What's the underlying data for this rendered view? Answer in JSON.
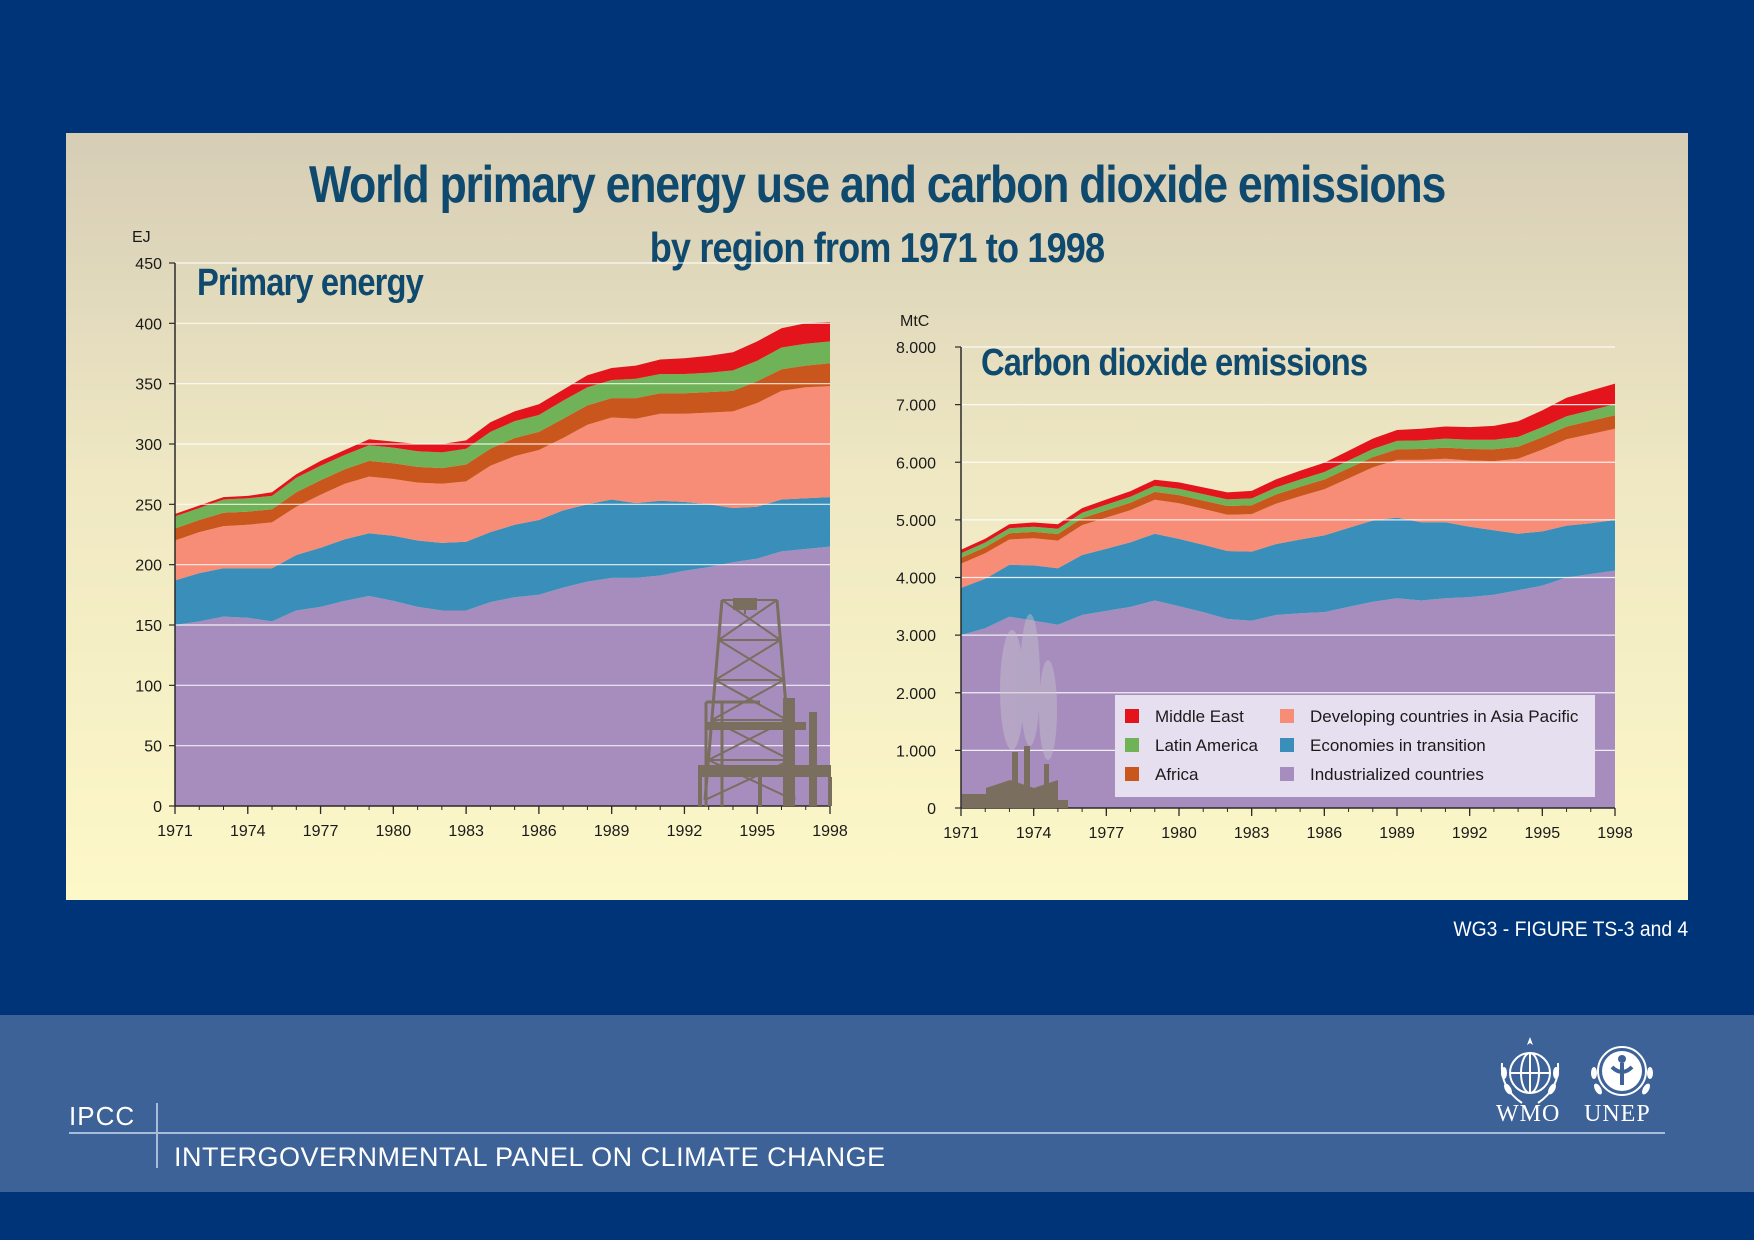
{
  "title": "World primary energy use and carbon dioxide emissions",
  "subtitle": "by region from 1971 to 1998",
  "figure_ref": "WG3 - FIGURE TS-3 and 4",
  "footer": {
    "abbr": "IPCC",
    "full_name": "INTERGOVERNMENTAL PANEL ON CLIMATE CHANGE",
    "logos": [
      {
        "label": "WMO",
        "icon": "wmo-emblem-icon"
      },
      {
        "label": "UNEP",
        "icon": "unep-emblem-icon"
      }
    ]
  },
  "colors": {
    "Middle East": "#e3141c",
    "Latin America": "#6fb257",
    "Africa": "#c9571d",
    "Developing countries in Asia Pacific": "#f78c77",
    "Economies in transition": "#3a8fba",
    "Industrialized countries": "#a68dbd"
  },
  "legend": {
    "left": [
      "Middle East",
      "Latin America",
      "Africa"
    ],
    "right": [
      "Developing countries in Asia Pacific",
      "Economies in transition",
      "Industrialized countries"
    ]
  },
  "chart_data": [
    {
      "type": "area",
      "stacked": true,
      "title": "Primary  energy",
      "ylabel": "EJ",
      "ylim": [
        0,
        450
      ],
      "yticks": [
        0,
        50,
        100,
        150,
        200,
        250,
        300,
        350,
        400,
        450
      ],
      "ytick_labels": [
        "0",
        "50",
        "100",
        "150",
        "200",
        "250",
        "300",
        "350",
        "400",
        "450"
      ],
      "xlim": [
        1971,
        1998
      ],
      "xticks": [
        1971,
        1974,
        1977,
        1980,
        1983,
        1986,
        1989,
        1992,
        1995,
        1998
      ],
      "xtick_labels": [
        "1971",
        "1974",
        "1977",
        "1980",
        "1983",
        "1986",
        "1989",
        "1992",
        "1995",
        "1998"
      ],
      "grid": true,
      "decoration": "oil-rig-icon",
      "x": [
        1971,
        1972,
        1973,
        1974,
        1975,
        1976,
        1977,
        1978,
        1979,
        1980,
        1981,
        1982,
        1983,
        1984,
        1985,
        1986,
        1987,
        1988,
        1989,
        1990,
        1991,
        1992,
        1993,
        1994,
        1995,
        1996,
        1997,
        1998
      ],
      "series": [
        {
          "name": "Industrialized countries",
          "values": [
            150,
            153,
            157,
            156,
            153,
            162,
            165,
            170,
            174,
            170,
            165,
            162,
            162,
            169,
            173,
            175,
            181,
            186,
            189,
            189,
            191,
            195,
            198,
            202,
            205,
            211,
            213,
            215
          ]
        },
        {
          "name": "Economies in transition",
          "values": [
            37,
            40,
            40,
            41,
            44,
            46,
            49,
            51,
            52,
            54,
            55,
            56,
            57,
            58,
            60,
            62,
            64,
            64,
            65,
            62,
            62,
            57,
            52,
            45,
            43,
            43,
            42,
            41
          ]
        },
        {
          "name": "Developing countries in Asia Pacific",
          "values": [
            33,
            34,
            35,
            36,
            38,
            40,
            44,
            46,
            47,
            47,
            48,
            49,
            50,
            55,
            57,
            58,
            60,
            66,
            68,
            70,
            72,
            73,
            76,
            80,
            86,
            90,
            92,
            92
          ]
        },
        {
          "name": "Africa",
          "values": [
            10,
            10,
            11,
            11,
            11,
            12,
            12,
            12,
            13,
            13,
            13,
            13,
            14,
            14,
            15,
            15,
            16,
            16,
            16,
            17,
            17,
            17,
            17,
            17,
            18,
            18,
            18,
            19
          ]
        },
        {
          "name": "Latin America",
          "values": [
            10,
            10,
            11,
            11,
            11,
            12,
            12,
            12,
            13,
            13,
            13,
            13,
            13,
            14,
            14,
            14,
            15,
            15,
            15,
            16,
            16,
            16,
            16,
            17,
            17,
            18,
            18,
            18
          ]
        },
        {
          "name": "Middle East",
          "values": [
            2,
            2,
            2,
            2,
            3,
            3,
            4,
            4,
            5,
            5,
            6,
            7,
            7,
            8,
            8,
            9,
            9,
            10,
            10,
            11,
            12,
            13,
            14,
            15,
            16,
            16,
            17,
            16
          ]
        }
      ]
    },
    {
      "type": "area",
      "stacked": true,
      "title": "Carbon dioxide emissions",
      "ylabel": "MtC",
      "ylim": [
        0,
        8000
      ],
      "yticks": [
        0,
        1000,
        2000,
        3000,
        4000,
        5000,
        6000,
        7000,
        8000
      ],
      "ytick_labels": [
        "0",
        "1.000",
        "2.000",
        "3.000",
        "4.000",
        "5.000",
        "6.000",
        "7.000",
        "8.000"
      ],
      "xlim": [
        1971,
        1998
      ],
      "xticks": [
        1971,
        1974,
        1977,
        1980,
        1983,
        1986,
        1989,
        1992,
        1995,
        1998
      ],
      "xtick_labels": [
        "1971",
        "1974",
        "1977",
        "1980",
        "1983",
        "1986",
        "1989",
        "1992",
        "1995",
        "1998"
      ],
      "grid": true,
      "legend_position": "bottom-right",
      "decoration": "factory-icon",
      "x": [
        1971,
        1972,
        1973,
        1974,
        1975,
        1976,
        1977,
        1978,
        1979,
        1980,
        1981,
        1982,
        1983,
        1984,
        1985,
        1986,
        1987,
        1988,
        1989,
        1990,
        1991,
        1992,
        1993,
        1994,
        1995,
        1996,
        1997,
        1998
      ],
      "series": [
        {
          "name": "Industrialized countries",
          "values": [
            3000,
            3120,
            3320,
            3250,
            3180,
            3350,
            3420,
            3490,
            3600,
            3500,
            3400,
            3280,
            3250,
            3350,
            3380,
            3400,
            3490,
            3580,
            3640,
            3600,
            3640,
            3660,
            3700,
            3780,
            3860,
            4000,
            4060,
            4120
          ]
        },
        {
          "name": "Economies in transition",
          "values": [
            820,
            860,
            900,
            960,
            980,
            1040,
            1080,
            1120,
            1160,
            1170,
            1170,
            1180,
            1200,
            1230,
            1280,
            1330,
            1370,
            1410,
            1400,
            1360,
            1320,
            1220,
            1120,
            980,
            940,
            900,
            880,
            880
          ]
        },
        {
          "name": "Developing countries in Asia Pacific",
          "values": [
            420,
            440,
            440,
            470,
            480,
            520,
            540,
            560,
            590,
            620,
            620,
            630,
            650,
            700,
            750,
            800,
            860,
            920,
            1000,
            1080,
            1100,
            1150,
            1200,
            1300,
            1420,
            1500,
            1550,
            1580
          ]
        },
        {
          "name": "Africa",
          "values": [
            100,
            104,
            108,
            112,
            115,
            120,
            125,
            130,
            135,
            140,
            145,
            150,
            155,
            160,
            165,
            170,
            175,
            180,
            185,
            190,
            195,
            200,
            205,
            210,
            215,
            220,
            228,
            235
          ]
        },
        {
          "name": "Latin America",
          "values": [
            80,
            84,
            88,
            90,
            92,
            95,
            100,
            104,
            108,
            110,
            112,
            115,
            118,
            122,
            126,
            130,
            135,
            140,
            145,
            150,
            155,
            160,
            165,
            170,
            175,
            180,
            185,
            190
          ]
        },
        {
          "name": "Middle East",
          "values": [
            60,
            64,
            68,
            72,
            76,
            80,
            88,
            96,
            104,
            110,
            116,
            122,
            130,
            140,
            150,
            160,
            170,
            180,
            190,
            200,
            210,
            220,
            240,
            270,
            290,
            320,
            340,
            360
          ]
        }
      ]
    }
  ]
}
